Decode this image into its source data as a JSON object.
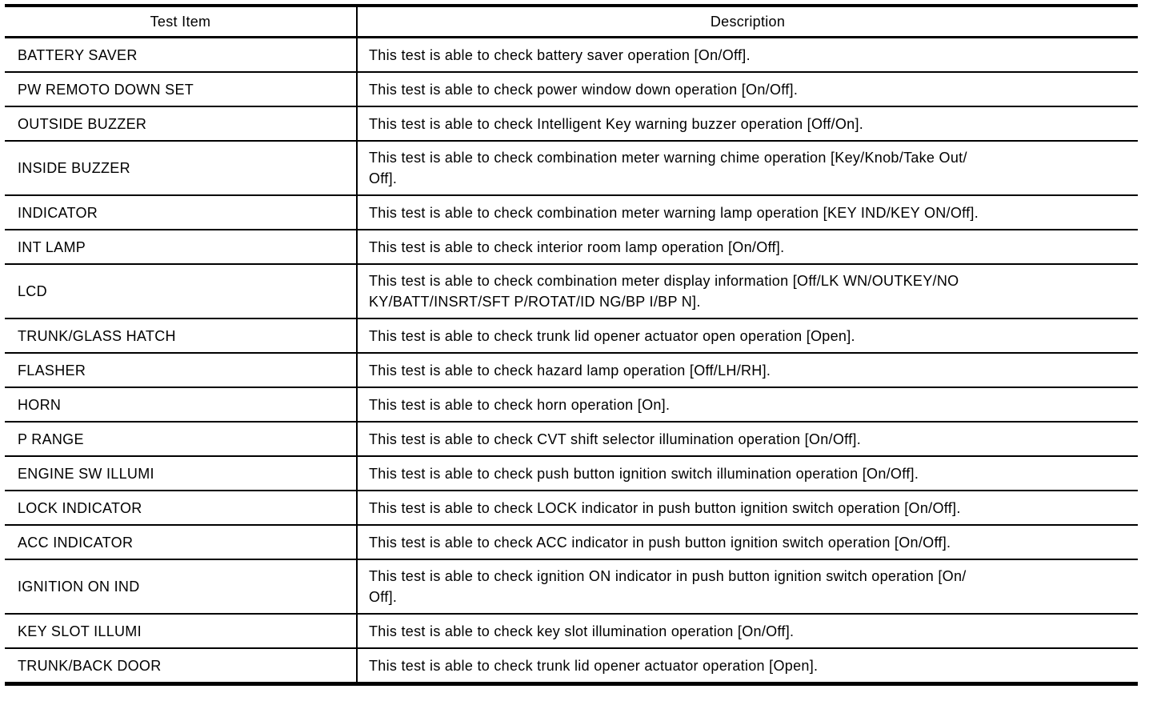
{
  "colors": {
    "background": "#ffffff",
    "text": "#000000",
    "border": "#000000"
  },
  "header": {
    "test_item": "Test Item",
    "description": "Description"
  },
  "rows": [
    {
      "test_item": "BATTERY SAVER",
      "description": "This test is able to check battery saver operation [On/Off]."
    },
    {
      "test_item": "PW REMOTO DOWN SET",
      "description": "This test is able to check power window down operation [On/Off]."
    },
    {
      "test_item": "OUTSIDE BUZZER",
      "description": "This test is able to check Intelligent Key warning buzzer operation [Off/On]."
    },
    {
      "test_item": "INSIDE BUZZER",
      "description": "This test is able to check combination meter warning chime operation [Key/Knob/Take Out/\nOff]."
    },
    {
      "test_item": "INDICATOR",
      "description": "This test is able to check combination meter warning lamp operation [KEY IND/KEY ON/Off]."
    },
    {
      "test_item": "INT LAMP",
      "description": "This test is able to check interior room lamp operation [On/Off]."
    },
    {
      "test_item": "LCD",
      "description": "This test is able to check combination meter display information [Off/LK WN/OUTKEY/NO\nKY/BATT/INSRT/SFT P/ROTAT/ID NG/BP I/BP N]."
    },
    {
      "test_item": "TRUNK/GLASS HATCH",
      "description": "This test is able to check trunk lid opener actuator open operation [Open]."
    },
    {
      "test_item": "FLASHER",
      "description": "This test is able to check hazard lamp operation [Off/LH/RH]."
    },
    {
      "test_item": "HORN",
      "description": "This test is able to check horn operation [On]."
    },
    {
      "test_item": "P RANGE",
      "description": "This test is able to check CVT shift selector illumination operation [On/Off]."
    },
    {
      "test_item": "ENGINE SW ILLUMI",
      "description": "This test is able to check push button ignition switch illumination operation [On/Off]."
    },
    {
      "test_item": "LOCK INDICATOR",
      "description": "This test is able to check LOCK indicator in push button ignition switch operation [On/Off]."
    },
    {
      "test_item": "ACC INDICATOR",
      "description": "This test is able to check ACC indicator in push button ignition switch operation [On/Off]."
    },
    {
      "test_item": "IGNITION ON IND",
      "description": "This test is able to check ignition ON indicator in push button ignition switch operation [On/\nOff]."
    },
    {
      "test_item": "KEY SLOT ILLUMI",
      "description": "This test is able to check key slot illumination operation [On/Off]."
    },
    {
      "test_item": "TRUNK/BACK DOOR",
      "description": "This test is able to check trunk lid opener actuator operation [Open]."
    }
  ]
}
